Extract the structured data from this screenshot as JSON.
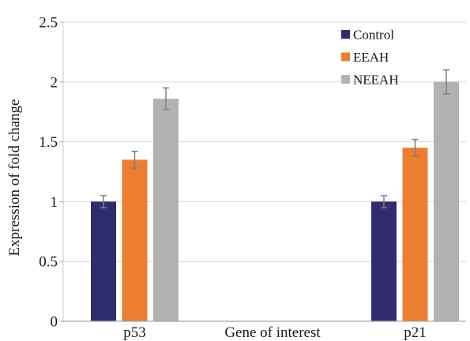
{
  "chart_data": {
    "type": "bar",
    "categories": [
      "p53",
      "p21"
    ],
    "series": [
      {
        "name": "Control",
        "color": "#2f2d6e",
        "values": [
          1.0,
          1.0
        ],
        "errors": [
          0.05,
          0.05
        ]
      },
      {
        "name": "EEAH",
        "color": "#ed7d31",
        "values": [
          1.35,
          1.45
        ],
        "errors": [
          0.07,
          0.07
        ]
      },
      {
        "name": "NEEAH",
        "color": "#b2b2b2",
        "values": [
          1.86,
          2.0
        ],
        "errors": [
          0.09,
          0.1
        ]
      }
    ],
    "xlabel": "Gene of interest",
    "ylabel": "Expression of fold change",
    "ylim": [
      0,
      2.5
    ],
    "yticks": [
      0,
      0.5,
      1,
      1.5,
      2,
      2.5
    ],
    "ytick_labels": [
      "0",
      "0.5",
      "1",
      "1.5",
      "2",
      "2.5"
    ],
    "grid": true,
    "error_bars": true,
    "legend": "top-right"
  }
}
